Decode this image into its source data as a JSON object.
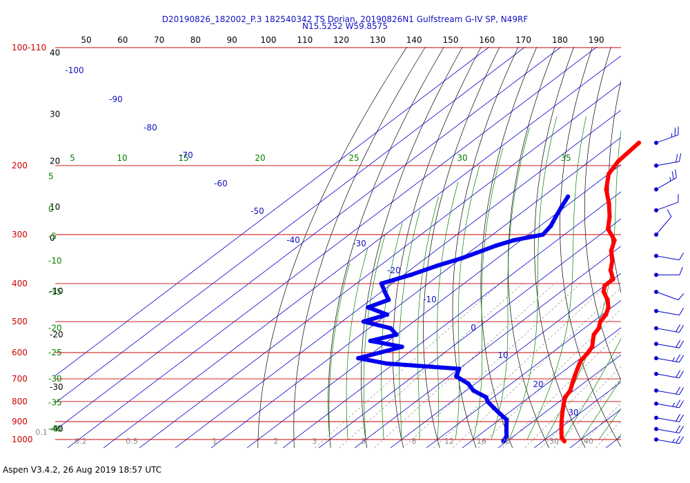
{
  "header": {
    "line1": "D20190826_182002_P.3 182540342 TS Dorian, 20190826N1 Gulfstream G-IV SP, N49RF",
    "line2": "N15.5252 W59.8575"
  },
  "footer": "Aspen V3.4.2, 26 Aug 2019  18:57 UTC",
  "chart_data": {
    "type": "skew-t",
    "pressure_levels": [
      {
        "p": 100,
        "label": "100-110"
      },
      {
        "p": 200,
        "label": "200"
      },
      {
        "p": 300,
        "label": "300"
      },
      {
        "p": 400,
        "label": "400"
      },
      {
        "p": 500,
        "label": "500"
      },
      {
        "p": 600,
        "label": "600"
      },
      {
        "p": 700,
        "label": "700"
      },
      {
        "p": 800,
        "label": "800"
      },
      {
        "p": 900,
        "label": "900"
      },
      {
        "p": 1000,
        "label": "1000"
      }
    ],
    "top_scale_labels": [
      "50",
      "60",
      "70",
      "80",
      "90",
      "100",
      "110",
      "120",
      "130",
      "140",
      "150",
      "160",
      "170",
      "180",
      "190"
    ],
    "height_labels": [
      {
        "p": 103,
        "label": "40"
      },
      {
        "p": 148,
        "label": "30"
      },
      {
        "p": 195,
        "label": "20"
      },
      {
        "p": 255,
        "label": "10"
      },
      {
        "p": 306,
        "label": "0"
      },
      {
        "p": 418,
        "label": "-10"
      },
      {
        "p": 540,
        "label": "-20"
      },
      {
        "p": 735,
        "label": "-30"
      },
      {
        "p": 940,
        "label": "-40"
      }
    ],
    "theta_labels": [
      {
        "p": 213,
        "label": "5"
      },
      {
        "p": 258,
        "label": "0"
      },
      {
        "p": 303,
        "label": "-5"
      },
      {
        "p": 350,
        "label": "-10"
      },
      {
        "p": 420,
        "label": "-15"
      },
      {
        "p": 520,
        "label": "-20"
      },
      {
        "p": 600,
        "label": "-25"
      },
      {
        "p": 700,
        "label": "-30"
      },
      {
        "p": 805,
        "label": "-35"
      },
      {
        "p": 940,
        "label": "-40"
      }
    ],
    "theta_top_labels": [
      "10",
      "15",
      "20",
      "25",
      "30",
      "35"
    ],
    "isotherm_labels": [
      "-100",
      "-90",
      "-80",
      "-70",
      "-60",
      "-50",
      "-40",
      "-30",
      "-20",
      "-10",
      "0",
      "10",
      "20",
      "30"
    ],
    "mixing_ratio_labels": [
      "0.1",
      "0.2",
      "0.5",
      "1",
      "2",
      "3",
      "5",
      "8",
      "12",
      "16",
      "20",
      "30",
      "40"
    ],
    "temperature": [
      [
        175,
        -63
      ],
      [
        195,
        -62
      ],
      [
        210,
        -60
      ],
      [
        230,
        -55
      ],
      [
        250,
        -49
      ],
      [
        270,
        -44
      ],
      [
        290,
        -40
      ],
      [
        310,
        -34
      ],
      [
        330,
        -31
      ],
      [
        350,
        -27
      ],
      [
        370,
        -24
      ],
      [
        390,
        -20
      ],
      [
        405,
        -20
      ],
      [
        420,
        -18
      ],
      [
        440,
        -14
      ],
      [
        460,
        -11
      ],
      [
        480,
        -9
      ],
      [
        500,
        -8
      ],
      [
        520,
        -6
      ],
      [
        540,
        -5
      ],
      [
        560,
        -3
      ],
      [
        580,
        -1
      ],
      [
        600,
        0
      ],
      [
        630,
        1
      ],
      [
        660,
        3
      ],
      [
        690,
        5
      ],
      [
        720,
        7
      ],
      [
        750,
        9
      ],
      [
        780,
        10
      ],
      [
        810,
        12
      ],
      [
        840,
        14
      ],
      [
        870,
        16
      ],
      [
        900,
        18
      ],
      [
        930,
        20
      ],
      [
        960,
        22
      ],
      [
        990,
        24
      ],
      [
        1010,
        26
      ]
    ],
    "dewpoint": [
      [
        240,
        -63
      ],
      [
        255,
        -61
      ],
      [
        270,
        -59
      ],
      [
        285,
        -57
      ],
      [
        300,
        -56
      ],
      [
        310,
        -62
      ],
      [
        320,
        -65
      ],
      [
        330,
        -67
      ],
      [
        345,
        -70
      ],
      [
        360,
        -74
      ],
      [
        380,
        -78
      ],
      [
        400,
        -83
      ],
      [
        420,
        -79
      ],
      [
        440,
        -75
      ],
      [
        460,
        -78
      ],
      [
        480,
        -70
      ],
      [
        500,
        -74
      ],
      [
        520,
        -64
      ],
      [
        540,
        -60
      ],
      [
        560,
        -65
      ],
      [
        580,
        -54
      ],
      [
        600,
        -58
      ],
      [
        620,
        -62
      ],
      [
        640,
        -52
      ],
      [
        660,
        -30
      ],
      [
        690,
        -28
      ],
      [
        720,
        -22
      ],
      [
        750,
        -18
      ],
      [
        780,
        -12
      ],
      [
        800,
        -10
      ],
      [
        830,
        -6
      ],
      [
        860,
        -2
      ],
      [
        890,
        2
      ],
      [
        920,
        4
      ],
      [
        950,
        6
      ],
      [
        980,
        8
      ],
      [
        1010,
        9
      ]
    ],
    "wind_barbs": [
      {
        "p": 175,
        "dir": 70,
        "spd": 15
      },
      {
        "p": 200,
        "dir": 80,
        "spd": 20
      },
      {
        "p": 230,
        "dir": 60,
        "spd": 15
      },
      {
        "p": 260,
        "dir": 70,
        "spd": 10
      },
      {
        "p": 300,
        "dir": 40,
        "spd": 10
      },
      {
        "p": 340,
        "dir": 100,
        "spd": 10
      },
      {
        "p": 380,
        "dir": 90,
        "spd": 10
      },
      {
        "p": 420,
        "dir": 110,
        "spd": 10
      },
      {
        "p": 470,
        "dir": 100,
        "spd": 10
      },
      {
        "p": 520,
        "dir": 100,
        "spd": 20
      },
      {
        "p": 570,
        "dir": 100,
        "spd": 20
      },
      {
        "p": 620,
        "dir": 100,
        "spd": 15
      },
      {
        "p": 680,
        "dir": 100,
        "spd": 20
      },
      {
        "p": 750,
        "dir": 100,
        "spd": 20
      },
      {
        "p": 810,
        "dir": 100,
        "spd": 15
      },
      {
        "p": 880,
        "dir": 100,
        "spd": 20
      },
      {
        "p": 940,
        "dir": 100,
        "spd": 20
      },
      {
        "p": 1000,
        "dir": 100,
        "spd": 15
      }
    ],
    "colors": {
      "temperature": "#ff0000",
      "dewpoint": "#0000ee",
      "isobar": "#cc0000",
      "isotherm": "#0000cc",
      "dry_adiabat": "#000000",
      "moist_adiabat": "#008000",
      "mixing_ratio": "#888888",
      "text_blue": "#1010c0"
    }
  }
}
